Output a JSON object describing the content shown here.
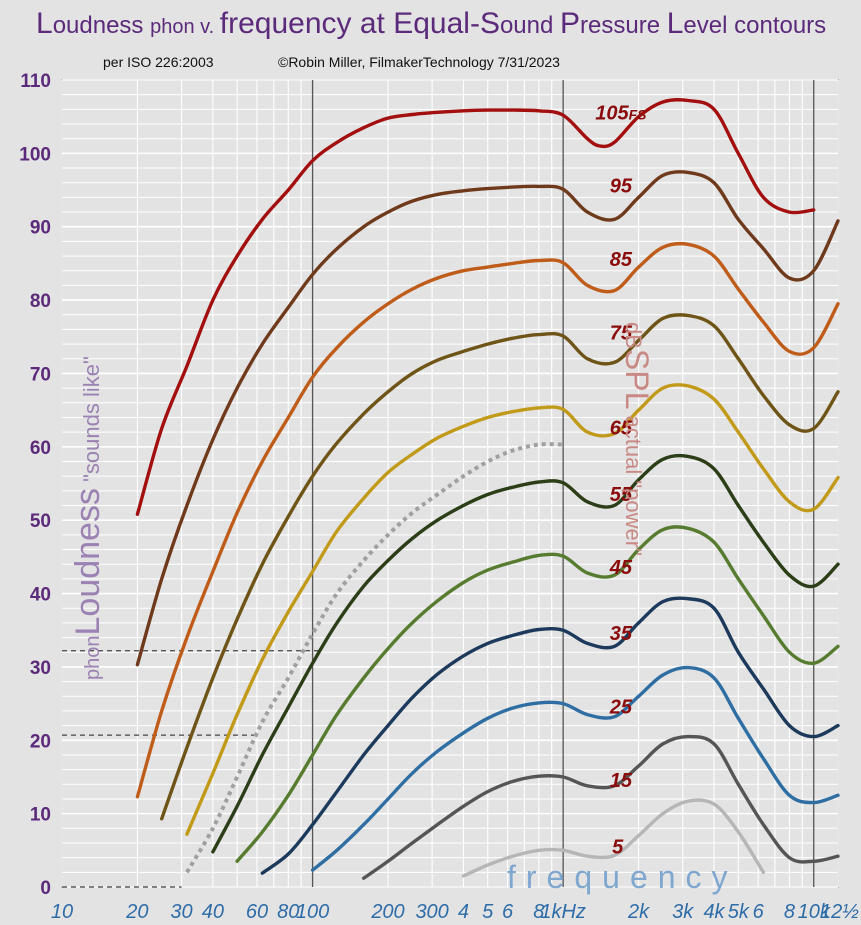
{
  "title": {
    "big1": "L",
    "rest1": "oudness ",
    "small1": "phon v. ",
    "big2": "frequency at Equal-S",
    "rest2": "ound ",
    "big3": "P",
    "rest3": "ressure ",
    "big4": "L",
    "rest4": "evel contours"
  },
  "subtitle_left": "per ISO 226:2003",
  "subtitle_right": "©Robin Miller, FilmakerTechnology 7/31/2023",
  "y_axis_label": {
    "unit": "phon",
    "main": "Loudness",
    "quote": " \"sounds like\""
  },
  "spl_label": {
    "unit": "dB",
    "main": "SPL",
    "quote": " actual \"power\""
  },
  "x_axis_label": "frequency",
  "colors": {
    "background": "#e3e3e3",
    "grid": "#ffffff",
    "frame": "#555555",
    "tick_y": "#5b2a7a",
    "tick_x": "#2e6ca8",
    "contour_label": "#8b0c0c",
    "threshold_dotted": "#a0a0a0"
  },
  "chart_data": {
    "type": "line",
    "x_scale": "log",
    "xlim": [
      10,
      12500
    ],
    "ylim": [
      0,
      110
    ],
    "grid": true,
    "x_ticks": [
      {
        "v": 10,
        "t": "10"
      },
      {
        "v": 20,
        "t": "20"
      },
      {
        "v": 30,
        "t": "30"
      },
      {
        "v": 40,
        "t": "40"
      },
      {
        "v": 60,
        "t": "60"
      },
      {
        "v": 80,
        "t": "80"
      },
      {
        "v": 100,
        "t": "100"
      },
      {
        "v": 200,
        "t": "200"
      },
      {
        "v": 300,
        "t": "300"
      },
      {
        "v": 400,
        "t": "4"
      },
      {
        "v": 500,
        "t": "5"
      },
      {
        "v": 600,
        "t": "6"
      },
      {
        "v": 800,
        "t": "8"
      },
      {
        "v": 1000,
        "t": "1kHz"
      },
      {
        "v": 2000,
        "t": "2k"
      },
      {
        "v": 3000,
        "t": "3k"
      },
      {
        "v": 4000,
        "t": "4k"
      },
      {
        "v": 5000,
        "t": "5k"
      },
      {
        "v": 6000,
        "t": "6"
      },
      {
        "v": 8000,
        "t": "8"
      },
      {
        "v": 10000,
        "t": "10k"
      },
      {
        "v": 12500,
        "t": "12½"
      }
    ],
    "y_ticks": [
      {
        "v": 0,
        "t": "0"
      },
      {
        "v": 10,
        "t": "10"
      },
      {
        "v": 20,
        "t": "20"
      },
      {
        "v": 30,
        "t": "30"
      },
      {
        "v": 40,
        "t": "40"
      },
      {
        "v": 50,
        "t": "50"
      },
      {
        "v": 60,
        "t": "60"
      },
      {
        "v": 70,
        "t": "70"
      },
      {
        "v": 80,
        "t": "80"
      },
      {
        "v": 90,
        "t": "90"
      },
      {
        "v": 100,
        "t": "100"
      },
      {
        "v": 110,
        "t": "110"
      }
    ],
    "series": [
      {
        "label": "105FS",
        "color": "#a30e0e",
        "label_at": [
          1700,
          105.6
        ],
        "x": [
          20,
          25,
          31.5,
          40,
          50,
          63,
          80,
          100,
          125,
          160,
          200,
          250,
          315,
          400,
          500,
          630,
          800,
          1000,
          1250,
          1400,
          1600,
          2000,
          2500,
          3150,
          4000,
          5000,
          6300,
          8000,
          10000
        ],
        "y": [
          50.8,
          62.5,
          71,
          80,
          86,
          91,
          95,
          99,
          101.5,
          103.5,
          104.8,
          105.3,
          105.6,
          105.8,
          105.9,
          105.9,
          105.8,
          105.2,
          102,
          101,
          101.5,
          105,
          107,
          107.2,
          106,
          100,
          94,
          92,
          92.3
        ]
      },
      {
        "label": "95",
        "color": "#6f3a1c",
        "label_at": [
          1700,
          95.6
        ],
        "x": [
          20,
          25,
          31.5,
          40,
          50,
          63,
          80,
          100,
          125,
          160,
          200,
          250,
          315,
          400,
          500,
          630,
          800,
          1000,
          1250,
          1600,
          2000,
          2500,
          3150,
          4000,
          5000,
          6300,
          8000,
          10000,
          12500
        ],
        "y": [
          30.3,
          42,
          52,
          61,
          68,
          74,
          79,
          83.5,
          87,
          90,
          92,
          93.5,
          94.4,
          94.9,
          95.2,
          95.4,
          95.5,
          95.1,
          92,
          91,
          94,
          97,
          97.4,
          96,
          91,
          87,
          83,
          84,
          90.8
        ]
      },
      {
        "label": "85",
        "color": "#c05c1a",
        "label_at": [
          1700,
          85.6
        ],
        "x": [
          20,
          25,
          31.5,
          40,
          50,
          63,
          80,
          100,
          125,
          160,
          200,
          250,
          315,
          400,
          500,
          630,
          800,
          1000,
          1250,
          1600,
          2000,
          2500,
          3150,
          4000,
          5000,
          6300,
          8000,
          10000,
          12500
        ],
        "y": [
          12.3,
          24,
          34,
          43,
          51,
          58,
          64,
          69.5,
          73.5,
          77,
          79.5,
          81.5,
          83,
          84,
          84.5,
          85,
          85.4,
          85.1,
          82,
          81.3,
          84.5,
          87.2,
          87.6,
          86,
          81.5,
          77,
          73,
          73.5,
          79.5
        ]
      },
      {
        "label": "75",
        "color": "#6e5416",
        "label_at": [
          1700,
          75.6
        ],
        "x": [
          25,
          31.5,
          40,
          50,
          63,
          80,
          100,
          125,
          160,
          200,
          250,
          315,
          400,
          500,
          630,
          800,
          1000,
          1250,
          1600,
          2000,
          2500,
          3150,
          4000,
          5000,
          6300,
          8000,
          10000,
          12500
        ],
        "y": [
          9.3,
          19,
          28.5,
          36.5,
          44,
          50.5,
          56,
          60.5,
          64.5,
          67.5,
          70,
          71.8,
          73,
          74,
          74.8,
          75.3,
          75.1,
          72,
          71.5,
          74.5,
          77.5,
          77.9,
          76.5,
          72,
          67,
          63,
          62.5,
          67.5
        ]
      },
      {
        "label": "65",
        "color": "#c29a1a",
        "label_at": [
          1700,
          62.6
        ],
        "x": [
          31.5,
          40,
          50,
          63,
          80,
          100,
          125,
          160,
          200,
          250,
          315,
          400,
          500,
          630,
          800,
          1000,
          1250,
          1600,
          2000,
          2500,
          3150,
          4000,
          5000,
          6300,
          8000,
          10000,
          12500
        ],
        "y": [
          7.2,
          15.5,
          23.5,
          31,
          37.5,
          43,
          48.5,
          53,
          56.5,
          59,
          61.2,
          62.8,
          64,
          64.8,
          65.3,
          65.1,
          62,
          61.8,
          65,
          68,
          68.3,
          66.5,
          62,
          57,
          52.5,
          51.5,
          55.8
        ]
      },
      {
        "label": "55",
        "color": "#2b3e17",
        "label_at": [
          1700,
          53.6
        ],
        "x": [
          40,
          50,
          63,
          80,
          100,
          125,
          160,
          200,
          250,
          315,
          400,
          500,
          630,
          800,
          1000,
          1250,
          1600,
          2000,
          2500,
          3150,
          4000,
          5000,
          6300,
          8000,
          10000,
          12500
        ],
        "y": [
          4.8,
          11,
          18,
          24.5,
          30.5,
          36,
          41,
          44.5,
          47.5,
          50,
          52,
          53.5,
          54.5,
          55.2,
          55.1,
          52.5,
          52,
          55.5,
          58.3,
          58.7,
          57,
          52,
          47,
          42.5,
          41,
          44
        ]
      },
      {
        "label": "45",
        "color": "#577c30",
        "label_at": [
          1700,
          43.6
        ],
        "x": [
          50,
          63,
          80,
          100,
          125,
          160,
          200,
          250,
          315,
          400,
          500,
          630,
          800,
          1000,
          1250,
          1600,
          2000,
          2500,
          3150,
          4000,
          5000,
          6300,
          8000,
          10000,
          12500
        ],
        "y": [
          3.5,
          7.5,
          12.5,
          18,
          23.5,
          28.5,
          32.5,
          36,
          39,
          41.5,
          43.2,
          44.3,
          45.2,
          45.1,
          42.8,
          42.5,
          46,
          48.7,
          48.9,
          47,
          42,
          37,
          32,
          30.5,
          32.8
        ]
      },
      {
        "label": "35",
        "color": "#1d3a5c",
        "label_at": [
          1700,
          34.6
        ],
        "x": [
          63,
          80,
          100,
          125,
          160,
          200,
          250,
          315,
          400,
          500,
          630,
          800,
          1000,
          1250,
          1600,
          2000,
          2500,
          3150,
          4000,
          5000,
          6300,
          8000,
          10000,
          12500
        ],
        "y": [
          1.9,
          4.5,
          8.5,
          13,
          18,
          22,
          25.8,
          29,
          31.5,
          33.2,
          34.3,
          35.1,
          35,
          33.2,
          32.8,
          36,
          38.9,
          39.3,
          38,
          32,
          27,
          22,
          20.5,
          22
        ]
      },
      {
        "label": "25",
        "color": "#2f6ea3",
        "label_at": [
          1700,
          24.6
        ],
        "x": [
          100,
          125,
          160,
          200,
          250,
          315,
          400,
          500,
          630,
          800,
          1000,
          1250,
          1600,
          2000,
          2500,
          3150,
          4000,
          5000,
          6300,
          8000,
          10000,
          12500
        ],
        "y": [
          2.3,
          5,
          8.5,
          12,
          15.5,
          18.5,
          21,
          23,
          24.4,
          25.1,
          25,
          23.5,
          23.2,
          26,
          28.9,
          29.9,
          28.5,
          23,
          17.5,
          12.5,
          11.5,
          12.5
        ]
      },
      {
        "label": "15",
        "color": "#555555",
        "label_at": [
          1700,
          14.6
        ],
        "x": [
          160,
          200,
          250,
          315,
          400,
          500,
          630,
          800,
          1000,
          1250,
          1600,
          2000,
          2500,
          3150,
          4000,
          5000,
          6300,
          8000,
          10000,
          12500
        ],
        "y": [
          1.2,
          3.5,
          6,
          8.5,
          11,
          13,
          14.4,
          15.1,
          15,
          13.8,
          13.8,
          16.5,
          19.5,
          20.5,
          19.5,
          14,
          8.5,
          4,
          3.5,
          4.2
        ]
      },
      {
        "label": "5",
        "color": "#b6b6b6",
        "label_at": [
          1650,
          5.5
        ],
        "x": [
          400,
          500,
          630,
          800,
          1000,
          1250,
          1600,
          2000,
          2500,
          3150,
          4000,
          5000,
          6300
        ],
        "y": [
          1.5,
          3,
          4.2,
          5,
          5,
          4.2,
          4.3,
          7,
          10,
          11.7,
          11.3,
          7.5,
          2
        ]
      }
    ],
    "threshold_dotted": {
      "x": [
        31.5,
        40,
        50,
        63,
        80,
        100,
        125,
        160,
        200,
        250,
        315,
        400,
        500,
        630,
        800,
        1000
      ],
      "y": [
        2,
        8,
        15,
        22.5,
        28.5,
        34.5,
        40,
        44.5,
        48,
        51,
        53.5,
        56,
        58,
        59.5,
        60.3,
        60.3
      ]
    },
    "dashed_guides": [
      {
        "y": 32.2,
        "x_end": 110
      },
      {
        "y": 20.7,
        "x_end": 60
      },
      {
        "y": 0,
        "x_end": 30
      }
    ]
  }
}
